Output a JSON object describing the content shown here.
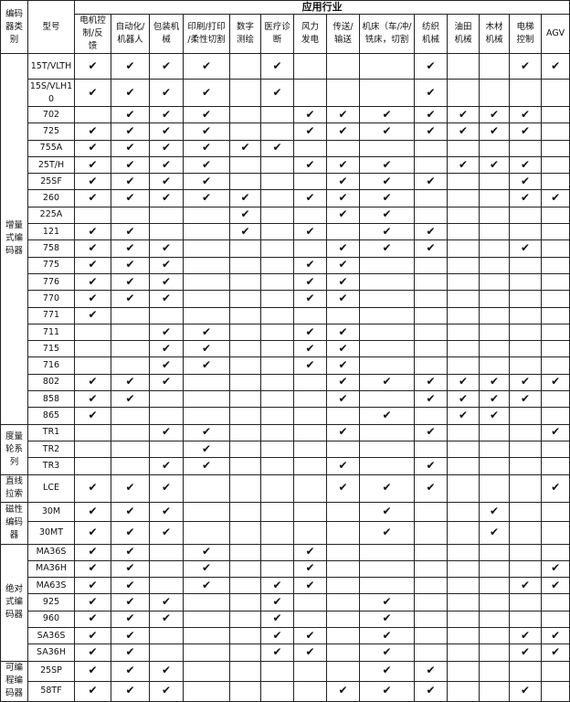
{
  "header": {
    "category": "编码\n器类\n别",
    "model": "型号",
    "industry_group": "应用行业",
    "industries": [
      "电机控\n制/反\n馈",
      "自动化/\n机器人",
      "包装机\n械",
      "印刷/打印\n/柔性切割",
      "数字\n测绘",
      "医疗诊\n断",
      "风力\n发电",
      "传送/\n输送",
      "机床（车/冲/\n铣床，切割",
      "纺织\n机械",
      "油田\n机械",
      "木材\n机械",
      "电梯\n控制",
      "AGV"
    ]
  },
  "check_symbol": "✔",
  "groups": [
    {
      "category": "增量\n式编\n码器",
      "rows": [
        {
          "model": "15T/VLTH",
          "marks": "11110100010011"
        },
        {
          "model": "15S/VLH1\n0",
          "marks": "11110100010000"
        },
        {
          "model": "702",
          "marks": "01110011111110"
        },
        {
          "model": "725",
          "marks": "11110011111110"
        },
        {
          "model": "755A",
          "marks": "11111100000000"
        },
        {
          "model": "25T/H",
          "marks": "11110011101110"
        },
        {
          "model": "25SF",
          "marks": "11110001110010"
        },
        {
          "model": "260",
          "marks": "11111011100011"
        },
        {
          "model": "225A",
          "marks": "00001001100000"
        },
        {
          "model": "121",
          "marks": "11001010110000"
        },
        {
          "model": "758",
          "marks": "11100001110010"
        },
        {
          "model": "775",
          "marks": "11100011000000"
        },
        {
          "model": "776",
          "marks": "11100011000000"
        },
        {
          "model": "770",
          "marks": "11100011000000"
        },
        {
          "model": "771",
          "marks": "10000000000000"
        },
        {
          "model": "711",
          "marks": "00110011000000"
        },
        {
          "model": "715",
          "marks": "00110011000000"
        },
        {
          "model": "716",
          "marks": "00110011000000"
        },
        {
          "model": "802",
          "marks": "11100001111111"
        },
        {
          "model": "858",
          "marks": "11000001011110"
        },
        {
          "model": "865",
          "marks": "10000000101100"
        }
      ]
    },
    {
      "category": "度量\n轮系\n列",
      "rows": [
        {
          "model": "TR1",
          "marks": "00110001010001"
        },
        {
          "model": "TR2",
          "marks": "00010000000000"
        },
        {
          "model": "TR3",
          "marks": "00110001010000"
        }
      ]
    },
    {
      "category": "直线\n拉索",
      "rows": [
        {
          "model": "LCE",
          "marks": "11100001110001"
        }
      ]
    },
    {
      "category": "磁性\n编码\n器",
      "rows": [
        {
          "model": "30M",
          "marks": "11100000100100"
        },
        {
          "model": "30MT",
          "marks": "11100000100100"
        }
      ]
    },
    {
      "category": "绝对\n式编\n码器",
      "rows": [
        {
          "model": "MA36S",
          "marks": "11010010000000"
        },
        {
          "model": "MA36H",
          "marks": "11010010000001"
        },
        {
          "model": "MA63S",
          "marks": "11010110000011"
        },
        {
          "model": "925",
          "marks": "11100100100000"
        },
        {
          "model": "960",
          "marks": "11100100100000"
        },
        {
          "model": "SA36S",
          "marks": "11000110100011"
        },
        {
          "model": "SA36H",
          "marks": "11000110100011"
        }
      ]
    },
    {
      "category": "可编\n程编\n码器",
      "rows": [
        {
          "model": "25SP",
          "marks": "11100000110000"
        },
        {
          "model": "58TF",
          "marks": "11100001110010"
        }
      ]
    }
  ]
}
